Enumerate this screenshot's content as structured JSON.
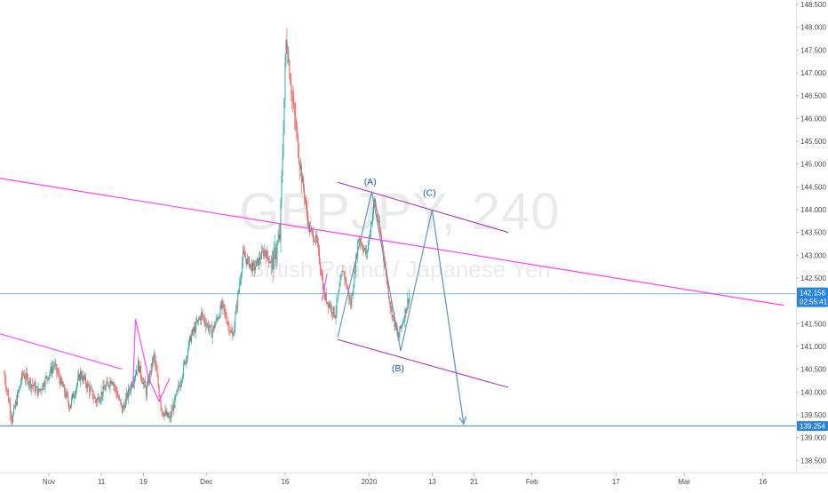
{
  "watermark": {
    "symbol": "GBPJPY, 240",
    "description": "British Pound / Japanese Yen"
  },
  "chart_data": {
    "type": "candlestick",
    "symbol": "GBPJPY",
    "interval": "240",
    "description": "British Pound / Japanese Yen",
    "y_axis": {
      "min": 138.25,
      "max": 148.5,
      "position": "right",
      "ticks": [
        "138.500",
        "139.000",
        "139.500",
        "140.000",
        "140.500",
        "141.000",
        "141.500",
        "142.000",
        "142.500",
        "143.000",
        "143.500",
        "144.000",
        "144.500",
        "145.000",
        "145.500",
        "146.000",
        "146.500",
        "147.000",
        "147.500",
        "148.000",
        "148.500"
      ]
    },
    "x_axis": {
      "ticks": [
        {
          "label": "Nov",
          "day": 0
        },
        {
          "label": "11",
          "day": 10
        },
        {
          "label": "19",
          "day": 18
        },
        {
          "label": "Dec",
          "day": 30
        },
        {
          "label": "16",
          "day": 45
        },
        {
          "label": "2020",
          "day": 61
        },
        {
          "label": "13",
          "day": 73
        },
        {
          "label": "21",
          "day": 81
        },
        {
          "label": "Feb",
          "day": 92
        },
        {
          "label": "17",
          "day": 108
        },
        {
          "label": "Mar",
          "day": 121
        },
        {
          "label": "16",
          "day": 136
        }
      ]
    },
    "colors": {
      "up": "#26a69a",
      "down": "#ef5350",
      "trend": "#ff40ff",
      "channel": "#9c27b0",
      "projection": "#5b8fc4",
      "price_line": "#6fb6e8",
      "support_line": "#4a86c5",
      "tag_bg": "#2a84d6"
    },
    "price_path": [
      {
        "day": -8.5,
        "price": 140.4
      },
      {
        "day": -7,
        "price": 139.4
      },
      {
        "day": -5,
        "price": 140.4
      },
      {
        "day": -2,
        "price": 140.0
      },
      {
        "day": 1,
        "price": 140.6
      },
      {
        "day": 4,
        "price": 139.7
      },
      {
        "day": 6,
        "price": 140.4
      },
      {
        "day": 9,
        "price": 139.8
      },
      {
        "day": 12,
        "price": 140.3
      },
      {
        "day": 14,
        "price": 139.6
      },
      {
        "day": 17,
        "price": 140.6
      },
      {
        "day": 18.5,
        "price": 140.0
      },
      {
        "day": 20,
        "price": 140.8
      },
      {
        "day": 21.5,
        "price": 139.6
      },
      {
        "day": 23,
        "price": 139.4
      },
      {
        "day": 25,
        "price": 140.2
      },
      {
        "day": 27,
        "price": 141.2
      },
      {
        "day": 29,
        "price": 141.7
      },
      {
        "day": 31,
        "price": 141.3
      },
      {
        "day": 33,
        "price": 141.9
      },
      {
        "day": 35,
        "price": 141.2
      },
      {
        "day": 37,
        "price": 143.0
      },
      {
        "day": 39,
        "price": 142.7
      },
      {
        "day": 41,
        "price": 143.1
      },
      {
        "day": 42.5,
        "price": 142.8
      },
      {
        "day": 44,
        "price": 143.4
      },
      {
        "day": 45.2,
        "price": 147.8
      },
      {
        "day": 46.5,
        "price": 146.3
      },
      {
        "day": 48,
        "price": 144.9
      },
      {
        "day": 49.5,
        "price": 143.6
      },
      {
        "day": 51,
        "price": 143.3
      },
      {
        "day": 52.5,
        "price": 142.1
      },
      {
        "day": 54.5,
        "price": 141.7
      },
      {
        "day": 56,
        "price": 142.7
      },
      {
        "day": 57.5,
        "price": 141.9
      },
      {
        "day": 59,
        "price": 143.4
      },
      {
        "day": 60.5,
        "price": 143.0
      },
      {
        "day": 62,
        "price": 144.2
      },
      {
        "day": 63.5,
        "price": 143.2
      },
      {
        "day": 65,
        "price": 141.9
      },
      {
        "day": 66.5,
        "price": 141.2
      },
      {
        "day": 67.5,
        "price": 141.6
      },
      {
        "day": 68.8,
        "price": 142.2
      }
    ],
    "drawings": {
      "long_trendline": [
        {
          "day": -10,
          "price": 144.7
        },
        {
          "day": 140,
          "price": 141.9
        }
      ],
      "short_trendline": [
        {
          "day": -10,
          "price": 141.3
        },
        {
          "day": 14,
          "price": 140.5
        }
      ],
      "triangle_left": [
        {
          "day": 16,
          "price": 140.1
        },
        {
          "day": 16.5,
          "price": 141.6
        },
        {
          "day": 19,
          "price": 140.3
        },
        {
          "day": 21,
          "price": 139.8
        },
        {
          "day": 23,
          "price": 140.3
        }
      ],
      "triangle_small": [
        {
          "day": 52,
          "price": 142.0
        },
        {
          "day": 53,
          "price": 142.6
        }
      ],
      "channel_upper": [
        {
          "day": 55,
          "price": 144.6
        },
        {
          "day": 87.5,
          "price": 143.5
        }
      ],
      "channel_lower": [
        {
          "day": 55,
          "price": 141.15
        },
        {
          "day": 87.5,
          "price": 140.1
        }
      ],
      "wave_lines": [
        {
          "day": 55,
          "price": 141.2
        },
        {
          "day": 61.5,
          "price": 144.4
        },
        {
          "day": 67,
          "price": 140.9
        },
        {
          "day": 73,
          "price": 144.0
        }
      ],
      "projection_arrow": [
        {
          "day": 73,
          "price": 144.0
        },
        {
          "day": 79,
          "price": 139.3
        }
      ],
      "support_price": 139.254,
      "current_price": 142.156
    },
    "wave_labels": [
      {
        "text": "(A)",
        "day": 61.2,
        "price": 144.55
      },
      {
        "text": "(B)",
        "day": 66.5,
        "price": 140.45
      },
      {
        "text": "(C)",
        "day": 72.5,
        "price": 144.3
      }
    ],
    "price_tags": {
      "last_price": "142.156",
      "countdown": "02:55:41",
      "support": "139.254"
    }
  }
}
